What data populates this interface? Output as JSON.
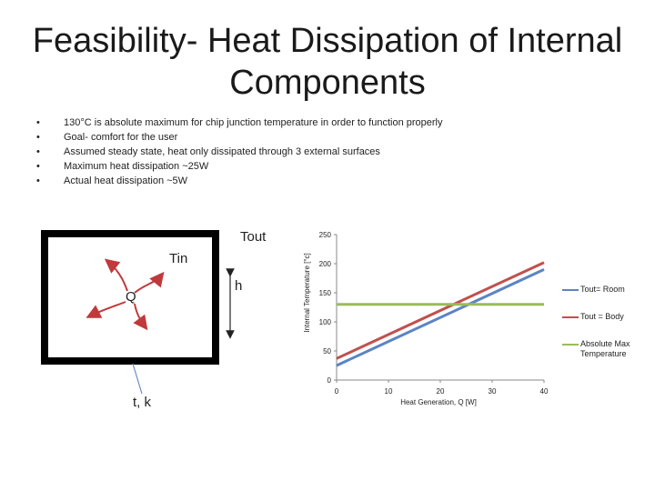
{
  "slide": {
    "title_line1": "Feasibility- Heat Dissipation of Internal",
    "title_line2": "Components",
    "bullets": [
      "130°C is absolute maximum for chip junction temperature in order to function properly",
      "Goal- comfort for the user",
      "Assumed steady state, heat only dissipated through 3 external surfaces",
      "Maximum heat dissipation ~25W",
      "Actual heat dissipation ~5W"
    ]
  },
  "diagram": {
    "tout_label": "Tout",
    "tin_label": "Tin",
    "q_label": "Q",
    "h_label": "h",
    "tk_label": "t, k"
  },
  "colors": {
    "room": "#5b84c4",
    "body": "#c0504d",
    "absmax": "#9bbb59",
    "box": "#000000",
    "arrows": "#c0393b"
  },
  "chart_data": {
    "type": "line",
    "title": "",
    "xlabel": "Heat Generation, Q [W]",
    "ylabel": "Internal Temperature [°c]",
    "xlim": [
      0,
      40
    ],
    "ylim": [
      0,
      250
    ],
    "xticks": [
      0,
      10,
      20,
      30,
      40
    ],
    "yticks": [
      0,
      50,
      100,
      150,
      200,
      250
    ],
    "legend_position": "right",
    "series": [
      {
        "name": "Tout= Room",
        "color": "#5b84c4",
        "x": [
          0,
          40
        ],
        "y": [
          25,
          190
        ]
      },
      {
        "name": "Tout = Body",
        "color": "#c0504d",
        "x": [
          0,
          40
        ],
        "y": [
          37,
          202
        ]
      },
      {
        "name": "Absolute Max Temperature",
        "color": "#9bbb59",
        "x": [
          0,
          40
        ],
        "y": [
          130,
          130
        ]
      }
    ]
  }
}
